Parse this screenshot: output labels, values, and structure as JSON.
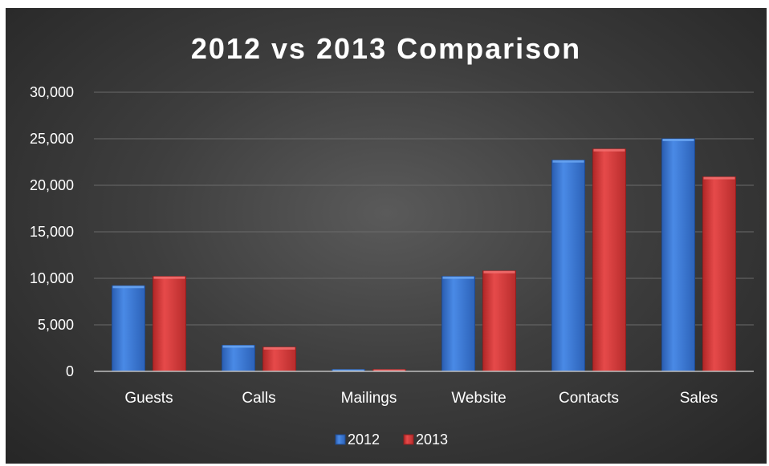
{
  "chart_data": {
    "type": "bar",
    "title": "2012 vs 2013 Comparison",
    "xlabel": "",
    "ylabel": "",
    "categories": [
      "Guests",
      "Calls",
      "Mailings",
      "Website",
      "Contacts",
      "Sales"
    ],
    "series": [
      {
        "name": "2012",
        "values": [
          9200,
          2800,
          200,
          10200,
          22700,
          25000
        ],
        "color": "#3a78d4"
      },
      {
        "name": "2013",
        "values": [
          10200,
          2600,
          200,
          10800,
          23900,
          20900
        ],
        "color": "#d63a3a"
      }
    ],
    "ylim": [
      0,
      30000
    ],
    "yticks": [
      0,
      5000,
      10000,
      15000,
      20000,
      25000,
      30000
    ],
    "ytick_labels": [
      "0",
      "5,000",
      "10,000",
      "15,000",
      "20,000",
      "25,000",
      "30,000"
    ],
    "grid": true,
    "legend_position": "bottom",
    "background": "#3a3a3a",
    "text_color": "#ffffff"
  }
}
